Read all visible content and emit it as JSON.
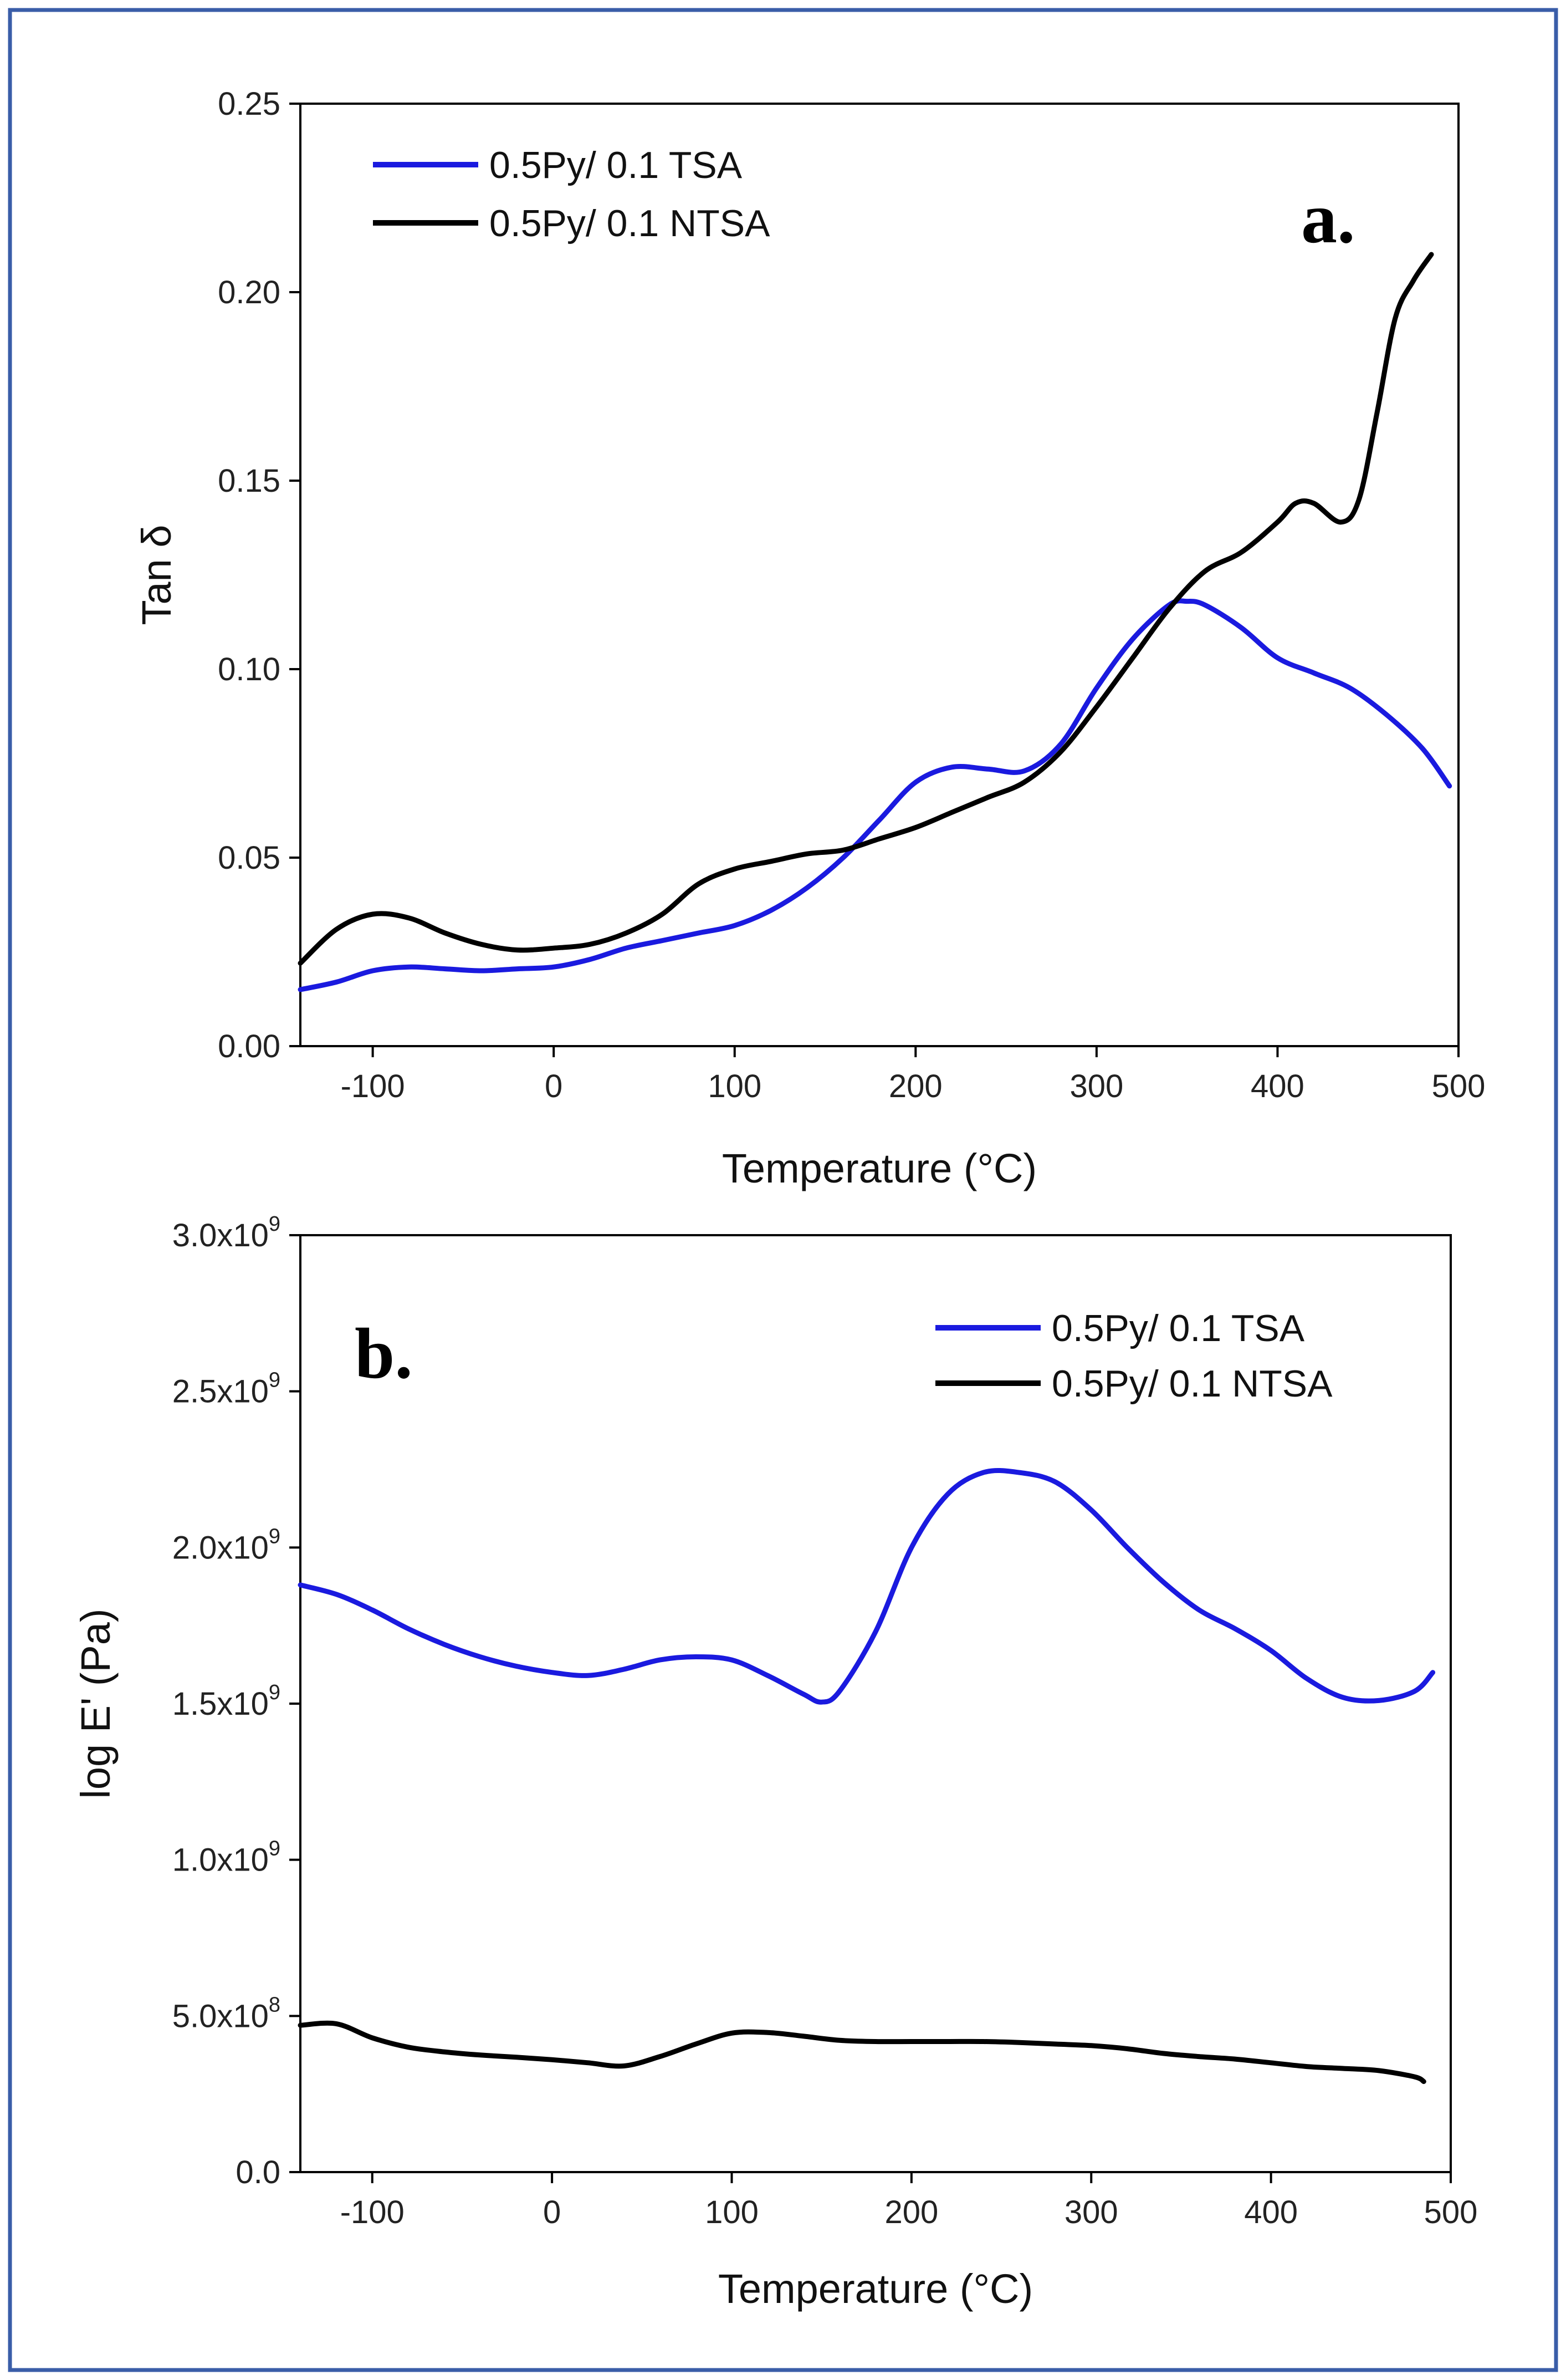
{
  "figure": {
    "border_color": "#3a5da8"
  },
  "chart_data": [
    {
      "type": "line",
      "panel_label": "a.",
      "xlabel": "Temperature (°C)",
      "ylabel": "Tan δ",
      "xlim": [
        -140,
        500
      ],
      "ylim": [
        0.0,
        0.25
      ],
      "xticks": [
        -100,
        0,
        100,
        200,
        300,
        400,
        500
      ],
      "yticks": [
        0.0,
        0.05,
        0.1,
        0.15,
        0.2,
        0.25
      ],
      "ytick_labels": [
        "0.00",
        "0.05",
        "0.10",
        "0.15",
        "0.20",
        "0.25"
      ],
      "grid": false,
      "legend_position": "top-left",
      "series": [
        {
          "name": "0.5Py/ 0.1 TSA",
          "color": "#1a1adf",
          "x": [
            -140,
            -120,
            -100,
            -80,
            -60,
            -40,
            -20,
            0,
            20,
            40,
            60,
            80,
            100,
            120,
            140,
            160,
            180,
            200,
            220,
            240,
            260,
            280,
            300,
            320,
            340,
            350,
            360,
            380,
            400,
            420,
            440,
            460,
            480,
            495
          ],
          "y": [
            0.015,
            0.017,
            0.02,
            0.021,
            0.0205,
            0.02,
            0.0205,
            0.021,
            0.023,
            0.026,
            0.028,
            0.03,
            0.032,
            0.036,
            0.042,
            0.05,
            0.06,
            0.07,
            0.074,
            0.0735,
            0.073,
            0.08,
            0.095,
            0.108,
            0.117,
            0.118,
            0.117,
            0.111,
            0.103,
            0.099,
            0.095,
            0.088,
            0.079,
            0.069
          ]
        },
        {
          "name": "0.5Py/ 0.1 NTSA",
          "color": "#000000",
          "x": [
            -140,
            -120,
            -100,
            -80,
            -60,
            -40,
            -20,
            0,
            20,
            40,
            60,
            80,
            100,
            120,
            140,
            160,
            180,
            200,
            220,
            240,
            260,
            280,
            300,
            320,
            340,
            360,
            380,
            400,
            410,
            420,
            435,
            445,
            455,
            465,
            475,
            485
          ],
          "y": [
            0.022,
            0.031,
            0.035,
            0.034,
            0.03,
            0.027,
            0.0255,
            0.026,
            0.027,
            0.03,
            0.035,
            0.043,
            0.047,
            0.049,
            0.051,
            0.052,
            0.055,
            0.058,
            0.062,
            0.066,
            0.07,
            0.078,
            0.09,
            0.103,
            0.116,
            0.126,
            0.131,
            0.139,
            0.144,
            0.144,
            0.139,
            0.145,
            0.168,
            0.193,
            0.203,
            0.21
          ]
        }
      ]
    },
    {
      "type": "line",
      "panel_label": "b.",
      "xlabel": "Temperature (°C)",
      "ylabel": "log E' (Pa)",
      "xlim": [
        -140,
        500
      ],
      "ylim": [
        0,
        3000000000
      ],
      "xticks": [
        -100,
        0,
        100,
        200,
        300,
        400,
        500
      ],
      "yticks": [
        0,
        500000000,
        1000000000,
        1500000000,
        2000000000,
        2500000000,
        3000000000
      ],
      "ytick_labels": [
        {
          "mantissa": "0.0",
          "exp": ""
        },
        {
          "mantissa": "5.0x10",
          "exp": "8"
        },
        {
          "mantissa": "1.0x10",
          "exp": "9"
        },
        {
          "mantissa": "1.5x10",
          "exp": "9"
        },
        {
          "mantissa": "2.0x10",
          "exp": "9"
        },
        {
          "mantissa": "2.5x10",
          "exp": "9"
        },
        {
          "mantissa": "3.0x10",
          "exp": "9"
        }
      ],
      "grid": false,
      "legend_position": "top-right",
      "series": [
        {
          "name": "0.5Py/ 0.1 TSA",
          "color": "#1a1adf",
          "x": [
            -140,
            -120,
            -100,
            -80,
            -60,
            -40,
            -20,
            0,
            20,
            40,
            60,
            80,
            100,
            120,
            140,
            150,
            160,
            180,
            200,
            220,
            240,
            260,
            280,
            300,
            320,
            340,
            360,
            380,
            400,
            420,
            440,
            460,
            480,
            490
          ],
          "y": [
            1880000000,
            1850000000,
            1800000000,
            1740000000,
            1690000000,
            1650000000,
            1620000000,
            1600000000,
            1590000000,
            1610000000,
            1640000000,
            1650000000,
            1640000000,
            1590000000,
            1530000000,
            1505000000,
            1540000000,
            1730000000,
            2000000000,
            2170000000,
            2240000000,
            2240000000,
            2210000000,
            2120000000,
            2000000000,
            1890000000,
            1800000000,
            1740000000,
            1670000000,
            1580000000,
            1520000000,
            1510000000,
            1540000000,
            1600000000
          ]
        },
        {
          "name": "0.5Py/ 0.1 NTSA",
          "color": "#000000",
          "x": [
            -140,
            -120,
            -100,
            -80,
            -60,
            -40,
            -20,
            0,
            20,
            40,
            60,
            80,
            100,
            120,
            140,
            160,
            180,
            200,
            220,
            240,
            260,
            280,
            300,
            320,
            340,
            360,
            380,
            400,
            420,
            440,
            460,
            480,
            485
          ],
          "y": [
            470000000,
            475000000,
            430000000,
            400000000,
            385000000,
            375000000,
            368000000,
            360000000,
            350000000,
            340000000,
            370000000,
            410000000,
            445000000,
            447000000,
            435000000,
            422000000,
            418000000,
            418000000,
            418000000,
            418000000,
            415000000,
            410000000,
            405000000,
            395000000,
            380000000,
            370000000,
            362000000,
            350000000,
            338000000,
            332000000,
            325000000,
            305000000,
            290000000
          ]
        }
      ]
    }
  ]
}
